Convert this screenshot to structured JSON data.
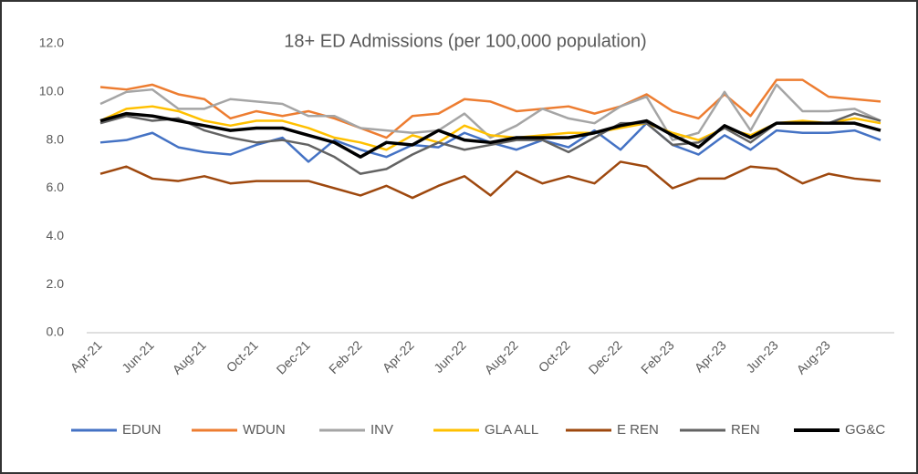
{
  "chart_data": {
    "type": "line",
    "title": "18+ ED Admissions (per 100,000 population)",
    "categories": [
      "Apr-21",
      null,
      "Jun-21",
      null,
      "Aug-21",
      null,
      "Oct-21",
      null,
      "Dec-21",
      null,
      "Feb-22",
      null,
      "Apr-22",
      null,
      "Jun-22",
      null,
      "Aug-22",
      null,
      "Oct-22",
      null,
      "Dec-22",
      null,
      "Feb-23",
      null,
      "Apr-23",
      null,
      "Jun-23",
      null,
      "Aug-23",
      null,
      null
    ],
    "ylim": [
      0,
      12
    ],
    "yticks": [
      {
        "value": 0,
        "label": "0.0"
      },
      {
        "value": 2,
        "label": "2.0"
      },
      {
        "value": 4,
        "label": "4.0"
      },
      {
        "value": 6,
        "label": "6.0"
      },
      {
        "value": 8,
        "label": "8.0"
      },
      {
        "value": 10,
        "label": "10.0"
      },
      {
        "value": 12,
        "label": "12.0"
      }
    ],
    "grid": false,
    "legend": "bottom",
    "series": [
      {
        "name": "EDUN",
        "color": "#4472c4",
        "values": [
          7.9,
          8.0,
          8.3,
          7.7,
          7.5,
          7.4,
          7.8,
          8.1,
          7.1,
          8.0,
          7.6,
          7.3,
          7.8,
          7.7,
          8.3,
          7.9,
          7.6,
          8.0,
          7.7,
          8.4,
          7.6,
          8.7,
          7.8,
          7.4,
          8.2,
          7.6,
          8.4,
          8.3,
          8.3,
          8.4,
          8.0
        ]
      },
      {
        "name": "WDUN",
        "color": "#ed7d31",
        "values": [
          10.2,
          10.1,
          10.3,
          9.9,
          9.7,
          8.9,
          9.2,
          9.0,
          9.2,
          8.9,
          8.5,
          8.1,
          9.0,
          9.1,
          9.7,
          9.6,
          9.2,
          9.3,
          9.4,
          9.1,
          9.4,
          9.9,
          9.2,
          8.9,
          9.9,
          9.0,
          10.5,
          10.5,
          9.8,
          9.7,
          9.6
        ]
      },
      {
        "name": "INV",
        "color": "#a5a5a5",
        "values": [
          9.5,
          10.0,
          10.1,
          9.3,
          9.3,
          9.7,
          9.6,
          9.5,
          9.0,
          9.0,
          8.5,
          8.4,
          8.3,
          8.4,
          9.1,
          8.1,
          8.6,
          9.3,
          8.9,
          8.7,
          9.4,
          9.8,
          8.0,
          8.3,
          10.0,
          8.4,
          10.3,
          9.2,
          9.2,
          9.3,
          8.8
        ]
      },
      {
        "name": "GLA ALL",
        "color": "#ffc000",
        "values": [
          8.8,
          9.3,
          9.4,
          9.2,
          8.8,
          8.6,
          8.8,
          8.8,
          8.5,
          8.1,
          7.9,
          7.6,
          8.2,
          7.9,
          8.6,
          8.2,
          8.1,
          8.2,
          8.3,
          8.3,
          8.5,
          8.7,
          8.3,
          8.0,
          8.5,
          8.2,
          8.7,
          8.8,
          8.7,
          8.9,
          8.7
        ]
      },
      {
        "name": "E REN",
        "color": "#9e480e",
        "values": [
          6.6,
          6.9,
          6.4,
          6.3,
          6.5,
          6.2,
          6.3,
          6.3,
          6.3,
          6.0,
          5.7,
          6.1,
          5.6,
          6.1,
          6.5,
          5.7,
          6.7,
          6.2,
          6.5,
          6.2,
          7.1,
          6.9,
          6.0,
          6.4,
          6.4,
          6.9,
          6.8,
          6.2,
          6.6,
          6.4,
          6.3
        ]
      },
      {
        "name": "REN",
        "color": "#636363",
        "values": [
          8.7,
          9.0,
          8.8,
          8.9,
          8.4,
          8.1,
          7.9,
          8.0,
          7.8,
          7.3,
          6.6,
          6.8,
          7.4,
          7.9,
          7.6,
          7.8,
          8.0,
          8.0,
          7.5,
          8.1,
          8.7,
          8.7,
          7.8,
          7.9,
          8.5,
          7.9,
          8.7,
          8.7,
          8.7,
          9.1,
          8.8
        ]
      },
      {
        "name": "GG&C",
        "color": "#000000",
        "values": [
          8.8,
          9.1,
          9.0,
          8.8,
          8.6,
          8.4,
          8.5,
          8.5,
          8.2,
          7.9,
          7.3,
          7.9,
          7.8,
          8.4,
          8.0,
          7.9,
          8.1,
          8.1,
          8.1,
          8.3,
          8.6,
          8.8,
          8.2,
          7.7,
          8.6,
          8.1,
          8.7,
          8.7,
          8.7,
          8.7,
          8.4
        ]
      }
    ]
  }
}
